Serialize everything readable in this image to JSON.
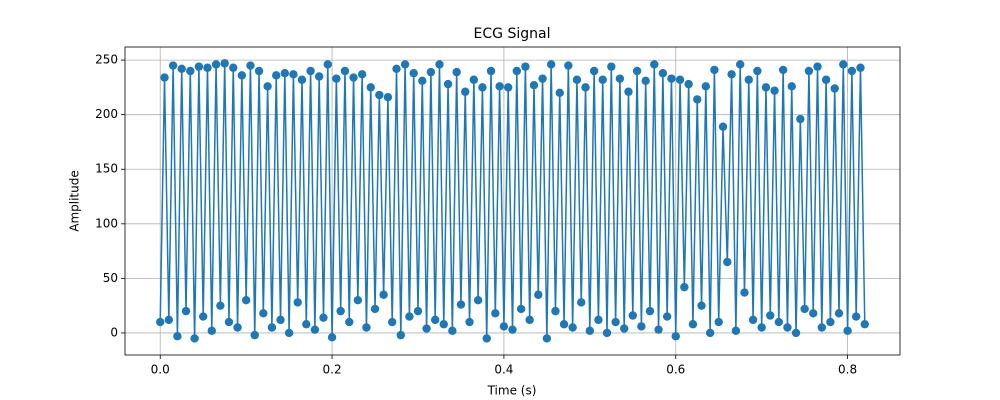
{
  "chart_data": {
    "type": "line",
    "title": "ECG Signal",
    "x_label": "Time (s)",
    "y_label": "Amplitude",
    "color": "#1f77b4",
    "grid": true,
    "markers": true,
    "xlim": [
      -0.041,
      0.861
    ],
    "ylim": [
      -20.2,
      262
    ],
    "xticks": [
      {
        "value": 0,
        "label": "0.0"
      },
      0.2,
      0.4,
      0.6,
      0.8
    ],
    "yticks": [
      0,
      50,
      100,
      150,
      200,
      250
    ],
    "x": [
      0,
      0.005,
      0.01,
      0.015,
      0.02,
      0.025,
      0.03,
      0.035,
      0.04,
      0.045,
      0.05,
      0.055,
      0.06,
      0.065,
      0.07,
      0.075,
      0.08,
      0.085,
      0.09,
      0.095,
      0.1,
      0.105,
      0.11,
      0.115,
      0.12,
      0.125,
      0.13,
      0.135,
      0.14,
      0.145,
      0.15,
      0.155,
      0.16,
      0.165,
      0.17,
      0.175,
      0.18,
      0.185,
      0.19,
      0.195,
      0.2,
      0.205,
      0.21,
      0.215,
      0.22,
      0.225,
      0.23,
      0.235,
      0.24,
      0.245,
      0.25,
      0.255,
      0.26,
      0.265,
      0.27,
      0.275,
      0.28,
      0.285,
      0.29,
      0.295,
      0.3,
      0.305,
      0.31,
      0.315,
      0.32,
      0.325,
      0.33,
      0.335,
      0.34,
      0.345,
      0.35,
      0.355,
      0.36,
      0.365,
      0.37,
      0.375,
      0.38,
      0.385,
      0.39,
      0.395,
      0.4,
      0.405,
      0.41,
      0.415,
      0.42,
      0.425,
      0.43,
      0.435,
      0.44,
      0.445,
      0.45,
      0.455,
      0.46,
      0.465,
      0.47,
      0.475,
      0.48,
      0.485,
      0.49,
      0.495,
      0.5,
      0.505,
      0.51,
      0.515,
      0.52,
      0.525,
      0.53,
      0.535,
      0.54,
      0.545,
      0.55,
      0.555,
      0.56,
      0.565,
      0.57,
      0.575,
      0.58,
      0.585,
      0.59,
      0.595,
      0.6,
      0.605,
      0.61,
      0.615,
      0.62,
      0.625,
      0.63,
      0.635,
      0.64,
      0.645,
      0.65,
      0.655,
      0.66,
      0.665,
      0.67,
      0.675,
      0.68,
      0.685,
      0.69,
      0.695,
      0.7,
      0.705,
      0.71,
      0.715,
      0.72,
      0.725,
      0.73,
      0.735,
      0.74,
      0.745,
      0.75,
      0.755,
      0.76,
      0.765,
      0.77,
      0.775,
      0.78,
      0.785,
      0.79,
      0.795,
      0.8,
      0.805,
      0.81,
      0.815,
      0.82
    ],
    "values": [
      10,
      234,
      12,
      245,
      -3,
      242,
      20,
      240,
      -5,
      244,
      15,
      243,
      2,
      246,
      25,
      247,
      10,
      243,
      5,
      236,
      30,
      245,
      -2,
      240,
      18,
      226,
      5,
      236,
      12,
      238,
      0,
      237,
      28,
      232,
      8,
      240,
      3,
      235,
      14,
      246,
      -4,
      233,
      20,
      240,
      10,
      234,
      30,
      237,
      5,
      225,
      22,
      218,
      35,
      216,
      10,
      242,
      -2,
      246,
      15,
      238,
      20,
      231,
      4,
      239,
      12,
      246,
      8,
      228,
      2,
      239,
      26,
      221,
      10,
      232,
      30,
      225,
      -5,
      240,
      18,
      226,
      6,
      225,
      3,
      240,
      22,
      244,
      12,
      227,
      35,
      233,
      -5,
      246,
      20,
      220,
      8,
      245,
      5,
      232,
      28,
      225,
      2,
      240,
      12,
      232,
      0,
      244,
      10,
      233,
      4,
      221,
      16,
      240,
      6,
      231,
      20,
      246,
      3,
      238,
      15,
      233,
      -3,
      232,
      42,
      228,
      8,
      214,
      25,
      226,
      0,
      241,
      10,
      189,
      65,
      237,
      2,
      246,
      37,
      232,
      12,
      240,
      5,
      225,
      16,
      222,
      10,
      241,
      5,
      226,
      0,
      196,
      22,
      240,
      18,
      244,
      5,
      232,
      10,
      224,
      18,
      246,
      2,
      240,
      15,
      243,
      8
    ]
  }
}
